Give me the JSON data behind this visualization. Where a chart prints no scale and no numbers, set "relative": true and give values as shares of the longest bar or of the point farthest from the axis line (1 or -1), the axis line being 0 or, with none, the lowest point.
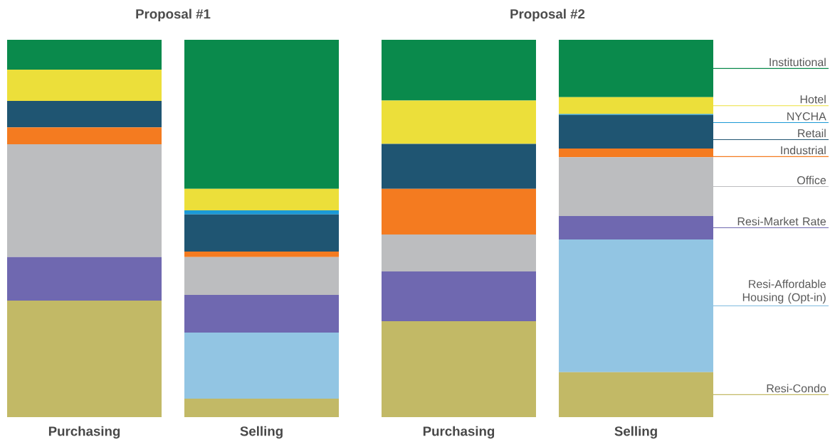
{
  "chart_data": [
    {
      "type": "bar",
      "title": "Proposal #1",
      "categories": [
        "Purchasing",
        "Selling"
      ],
      "stacked": true,
      "relative": true,
      "series": [
        {
          "color": "#c2b966",
          "values": [
            0.309,
            0.049
          ]
        },
        {
          "color": "#92c5e3",
          "values": [
            0,
            0.175
          ]
        },
        {
          "color": "#6f68b0",
          "values": [
            0.115,
            0.1
          ]
        },
        {
          "color": "#bcbdbf",
          "values": [
            0.299,
            0.1
          ]
        },
        {
          "color": "#f47b20",
          "values": [
            0.045,
            0.015
          ]
        },
        {
          "color": "#1f5572",
          "values": [
            0.07,
            0.098
          ]
        },
        {
          "color": "#1b9ad6",
          "values": [
            0,
            0.011
          ]
        },
        {
          "color": "#ecdf3a",
          "values": [
            0.083,
            0.057
          ]
        },
        {
          "color": "#0a8a4c",
          "values": [
            0.079,
            0.395
          ]
        }
      ]
    },
    {
      "type": "bar",
      "title": "Proposal #2",
      "categories": [
        "Purchasing",
        "Selling"
      ],
      "stacked": true,
      "relative": true,
      "legend": "right",
      "series": [
        {
          "name": "Resi-Condo",
          "color": "#c2b966",
          "values": [
            0.254,
            0.119
          ]
        },
        {
          "name": "Resi-Affordable Housing (Opt-in)",
          "color": "#92c5e3",
          "values": [
            0,
            0.352
          ]
        },
        {
          "name": "Resi-Market Rate",
          "color": "#6f68b0",
          "values": [
            0.132,
            0.062
          ]
        },
        {
          "name": "Office",
          "color": "#bcbdbf",
          "values": [
            0.098,
            0.156
          ]
        },
        {
          "name": "Industrial",
          "color": "#f47b20",
          "values": [
            0.121,
            0.023
          ]
        },
        {
          "name": "Retail",
          "color": "#1f5572",
          "values": [
            0.119,
            0.089
          ]
        },
        {
          "name": "NYCHA",
          "color": "#1b9ad6",
          "values": [
            0,
            0.002
          ]
        },
        {
          "name": "Hotel",
          "color": "#ecdf3a",
          "values": [
            0.115,
            0.045
          ]
        },
        {
          "name": "Institutional",
          "color": "#0a8a4c",
          "values": [
            0.161,
            0.152
          ]
        }
      ]
    }
  ]
}
